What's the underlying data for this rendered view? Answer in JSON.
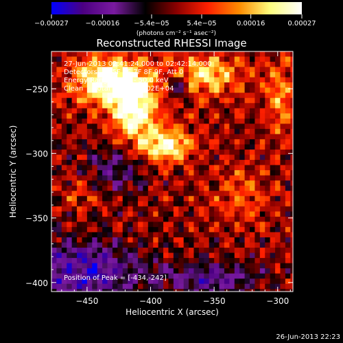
{
  "chart_data": {
    "type": "heatmap",
    "title": "Reconstructed RHESSI Image",
    "xlabel": "Heliocentric X (arcsec)",
    "ylabel": "Heliocentric Y (arcsec)",
    "xlim": [
      -478,
      -288
    ],
    "ylim": [
      -407,
      -221
    ],
    "xticks": [
      -450,
      -400,
      -350,
      -300
    ],
    "yticks": [
      -250,
      -300,
      -350,
      -400
    ],
    "xtick_labels": [
      "−450",
      "−400",
      "−350",
      "−300"
    ],
    "ytick_labels": [
      "−250",
      "−300",
      "−350",
      "−400"
    ],
    "colorbar": {
      "range": [
        -0.00027,
        0.00027
      ],
      "ticks": [
        -0.00027,
        -0.00016,
        -5.4e-05,
        5.4e-05,
        0.00016,
        0.00027
      ],
      "tick_labels": [
        "−0.00027",
        "−0.00016",
        "−5.4e−05",
        "5.4e−05",
        "0.00016",
        "0.00027"
      ],
      "unit_label": "(photons cm⁻² s⁻¹ asec⁻²)",
      "colors": [
        "#0000ff",
        "#4b0082",
        "#7a1aa0",
        "#000000",
        "#8b0000",
        "#ff2000",
        "#ff8c00",
        "#ffff80",
        "#ffffff"
      ]
    },
    "annotations": [
      "27-Jun-2013 02:41:24.000 to 02:42:14.000",
      "Detectors: 3F 5F 6F 7F 8F 9F, Att 0",
      "Energy Range: 25.0 - 50.0 keV",
      "Clean     Total counts: 1.02E+04",
      "Position of Peak = [-434,-242]"
    ],
    "peak": [
      -434,
      -242
    ],
    "grid": false
  },
  "footer_date": "26-Jun-2013 22:23"
}
